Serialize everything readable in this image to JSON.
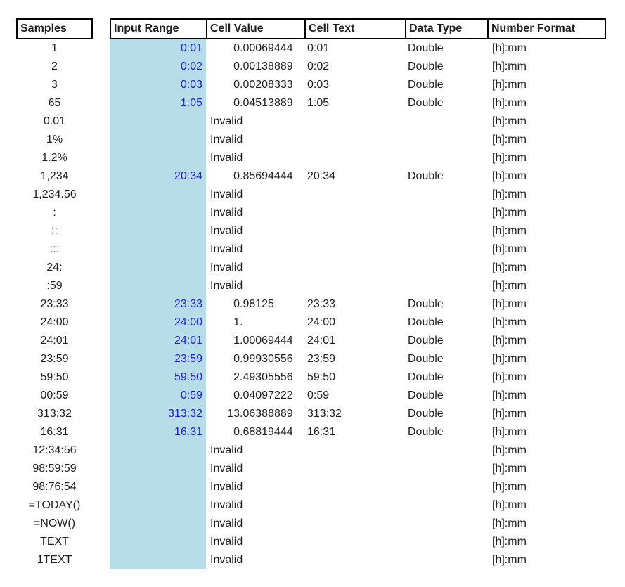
{
  "table": {
    "columns": [
      {
        "key": "sample",
        "label": "Samples"
      },
      {
        "key": "input_range",
        "label": "Input Range"
      },
      {
        "key": "cell_value",
        "label": "Cell Value"
      },
      {
        "key": "cell_text",
        "label": "Cell Text"
      },
      {
        "key": "data_type",
        "label": "Data Type"
      },
      {
        "key": "number_format",
        "label": "Number Format"
      }
    ],
    "rows": [
      {
        "sample": "1",
        "input_range": "0:01",
        "cell_value": "0.00069444",
        "cell_text": "0:01",
        "data_type": "Double",
        "number_format": "[h]:mm"
      },
      {
        "sample": "2",
        "input_range": "0:02",
        "cell_value": "0.00138889",
        "cell_text": "0:02",
        "data_type": "Double",
        "number_format": "[h]:mm"
      },
      {
        "sample": "3",
        "input_range": "0:03",
        "cell_value": "0.00208333",
        "cell_text": "0:03",
        "data_type": "Double",
        "number_format": "[h]:mm"
      },
      {
        "sample": "65",
        "input_range": "1:05",
        "cell_value": "0.04513889",
        "cell_text": "1:05",
        "data_type": "Double",
        "number_format": "[h]:mm"
      },
      {
        "sample": "0.01",
        "input_range": "",
        "cell_value": "Invalid",
        "cell_text": "",
        "data_type": "",
        "number_format": "[h]:mm"
      },
      {
        "sample": "1%",
        "input_range": "",
        "cell_value": "Invalid",
        "cell_text": "",
        "data_type": "",
        "number_format": "[h]:mm"
      },
      {
        "sample": "1.2%",
        "input_range": "",
        "cell_value": "Invalid",
        "cell_text": "",
        "data_type": "",
        "number_format": "[h]:mm"
      },
      {
        "sample": "1,234",
        "input_range": "20:34",
        "cell_value": "0.85694444",
        "cell_text": "20:34",
        "data_type": "Double",
        "number_format": "[h]:mm"
      },
      {
        "sample": "1,234.56",
        "input_range": "",
        "cell_value": "Invalid",
        "cell_text": "",
        "data_type": "",
        "number_format": "[h]:mm"
      },
      {
        "sample": ":",
        "input_range": "",
        "cell_value": "Invalid",
        "cell_text": "",
        "data_type": "",
        "number_format": "[h]:mm"
      },
      {
        "sample": "::",
        "input_range": "",
        "cell_value": "Invalid",
        "cell_text": "",
        "data_type": "",
        "number_format": "[h]:mm"
      },
      {
        "sample": ":::",
        "input_range": "",
        "cell_value": "Invalid",
        "cell_text": "",
        "data_type": "",
        "number_format": "[h]:mm"
      },
      {
        "sample": "24:",
        "input_range": "",
        "cell_value": "Invalid",
        "cell_text": "",
        "data_type": "",
        "number_format": "[h]:mm"
      },
      {
        "sample": ":59",
        "input_range": "",
        "cell_value": "Invalid",
        "cell_text": "",
        "data_type": "",
        "number_format": "[h]:mm"
      },
      {
        "sample": "23:33",
        "input_range": "23:33",
        "cell_value": "0.98125",
        "cell_text": "23:33",
        "data_type": "Double",
        "number_format": "[h]:mm"
      },
      {
        "sample": "24:00",
        "input_range": "24:00",
        "cell_value": "1.",
        "cell_text": "24:00",
        "data_type": "Double",
        "number_format": "[h]:mm"
      },
      {
        "sample": "24:01",
        "input_range": "24:01",
        "cell_value": "1.00069444",
        "cell_text": "24:01",
        "data_type": "Double",
        "number_format": "[h]:mm"
      },
      {
        "sample": "23:59",
        "input_range": "23:59",
        "cell_value": "0.99930556",
        "cell_text": "23:59",
        "data_type": "Double",
        "number_format": "[h]:mm"
      },
      {
        "sample": "59:50",
        "input_range": "59:50",
        "cell_value": "2.49305556",
        "cell_text": "59:50",
        "data_type": "Double",
        "number_format": "[h]:mm"
      },
      {
        "sample": "00:59",
        "input_range": "0:59",
        "cell_value": "0.04097222",
        "cell_text": "0:59",
        "data_type": "Double",
        "number_format": "[h]:mm"
      },
      {
        "sample": "313:32",
        "input_range": "313:32",
        "cell_value": "13.06388889",
        "cell_text": "313:32",
        "data_type": "Double",
        "number_format": "[h]:mm"
      },
      {
        "sample": "16:31",
        "input_range": "16:31",
        "cell_value": "0.68819444",
        "cell_text": "16:31",
        "data_type": "Double",
        "number_format": "[h]:mm"
      },
      {
        "sample": "12:34:56",
        "input_range": "",
        "cell_value": "Invalid",
        "cell_text": "",
        "data_type": "",
        "number_format": "[h]:mm"
      },
      {
        "sample": "98:59:59",
        "input_range": "",
        "cell_value": "Invalid",
        "cell_text": "",
        "data_type": "",
        "number_format": "[h]:mm"
      },
      {
        "sample": "98:76:54",
        "input_range": "",
        "cell_value": "Invalid",
        "cell_text": "",
        "data_type": "",
        "number_format": "[h]:mm"
      },
      {
        "sample": "=TODAY()",
        "input_range": "",
        "cell_value": "Invalid",
        "cell_text": "",
        "data_type": "",
        "number_format": "[h]:mm"
      },
      {
        "sample": "=NOW()",
        "input_range": "",
        "cell_value": "Invalid",
        "cell_text": "",
        "data_type": "",
        "number_format": "[h]:mm"
      },
      {
        "sample": "TEXT",
        "input_range": "",
        "cell_value": "Invalid",
        "cell_text": "",
        "data_type": "",
        "number_format": "[h]:mm"
      },
      {
        "sample": "1TEXT",
        "input_range": "",
        "cell_value": "Invalid",
        "cell_text": "",
        "data_type": "",
        "number_format": "[h]:mm"
      }
    ]
  },
  "labels": {
    "invalid": "Invalid"
  },
  "colors": {
    "input_range_highlight": "#B7DEE8",
    "input_range_text": "#2121CC",
    "body_text": "#1F1F1F",
    "header_border": "#000000"
  }
}
